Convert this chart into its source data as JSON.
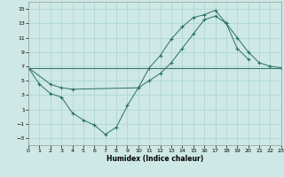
{
  "xlabel": "Humidex (Indice chaleur)",
  "bg_color": "#cde8e5",
  "line_color": "#2a6e65",
  "grid_color": "#a8d4d0",
  "xlim": [
    0,
    23
  ],
  "ylim": [
    -4,
    16
  ],
  "xticks": [
    0,
    1,
    2,
    3,
    4,
    5,
    6,
    7,
    8,
    9,
    10,
    11,
    12,
    13,
    14,
    15,
    16,
    17,
    18,
    19,
    20,
    21,
    22,
    23
  ],
  "yticks": [
    -3,
    -1,
    1,
    3,
    5,
    7,
    9,
    11,
    13,
    15
  ],
  "line1": {
    "x": [
      0,
      2,
      3,
      4,
      10,
      11,
      12,
      13,
      14,
      15,
      16,
      17,
      18,
      19,
      20,
      21,
      22,
      23
    ],
    "y": [
      6.8,
      4.5,
      4.0,
      3.8,
      4.0,
      5.0,
      6.0,
      7.5,
      9.5,
      11.5,
      13.5,
      14.0,
      13.0,
      11.0,
      9.0,
      7.5,
      7.0,
      6.8
    ]
  },
  "line2": {
    "x": [
      0,
      1,
      2,
      3,
      4,
      5,
      6,
      7,
      8,
      9,
      10,
      11,
      12,
      13,
      14,
      15,
      16,
      17,
      18,
      19,
      20
    ],
    "y": [
      6.8,
      4.5,
      3.2,
      2.7,
      0.5,
      -0.5,
      -1.2,
      -2.5,
      -1.5,
      1.5,
      4.0,
      6.8,
      8.5,
      10.8,
      12.5,
      13.8,
      14.2,
      14.8,
      13.0,
      9.5,
      8.0
    ]
  },
  "line3": {
    "x": [
      0,
      23
    ],
    "y": [
      6.8,
      6.8
    ]
  }
}
